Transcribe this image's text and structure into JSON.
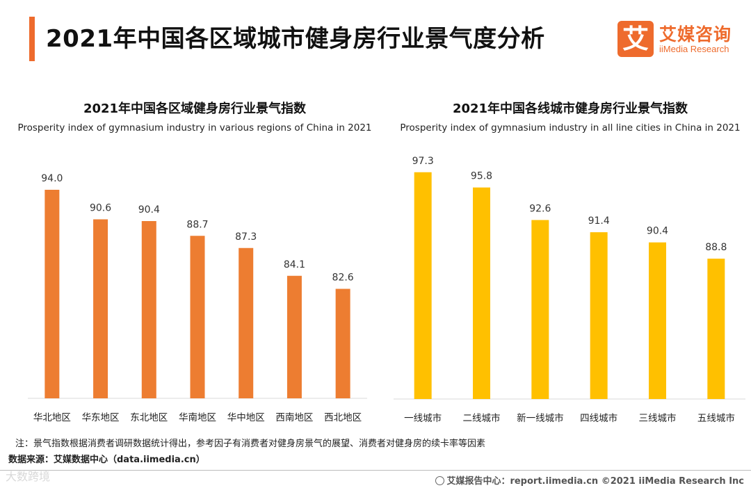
{
  "header": {
    "title": "2021年中国各区域城市健身房行业景气度分析",
    "logo_mark": "艾",
    "logo_cn": "艾媒咨询",
    "logo_en": "iiMedia Research"
  },
  "chart_data": [
    {
      "type": "bar",
      "title": "2021年中国各区域健身房行业景气指数",
      "subtitle": "Prosperity index of gymnasium industry in various regions of China in 2021",
      "categories": [
        "华北地区",
        "华东地区",
        "东北地区",
        "华南地区",
        "华中地区",
        "西南地区",
        "西北地区"
      ],
      "values": [
        94.0,
        90.6,
        90.4,
        88.7,
        87.3,
        84.1,
        82.6
      ],
      "color": "#ed7d31",
      "grid": false,
      "legend": "none"
    },
    {
      "type": "bar",
      "title": "2021年中国各线城市健身房行业景气指数",
      "subtitle": "Prosperity index of gymnasium industry in all line cities in China in 2021",
      "categories": [
        "一线城市",
        "二线城市",
        "新一线城市",
        "四线城市",
        "三线城市",
        "五线城市"
      ],
      "values": [
        97.3,
        95.8,
        92.6,
        91.4,
        90.4,
        88.8
      ],
      "color": "#ffc000",
      "grid": false,
      "legend": "none"
    }
  ],
  "footnote": {
    "note": "注：景气指数根据消费者调研数据统计得出，参考因子有消费者对健身房景气的展望、消费者对健身房的续卡率等因素",
    "source": "数据来源：艾媒数据中心（data.iimedia.cn）"
  },
  "footer": {
    "text": "艾媒报告中心：report.iimedia.cn   ©2021  iiMedia Research  Inc",
    "watermark": "大数跨境"
  }
}
